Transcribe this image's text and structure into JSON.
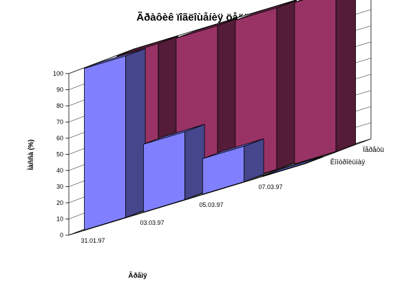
{
  "chart_data": {
    "type": "bar",
    "subtype": "3d-column",
    "title": "Ãðàôèê ïîãëîùåíèÿ öåëëþëîçû",
    "xlabel": "Âðåìÿ",
    "ylabel": "Ìàññà (%)",
    "categories": [
      "31.01.97",
      "03.03.97",
      "05.03.97",
      "07.03.97"
    ],
    "series": [
      {
        "name": "Êîíòðîëüíàÿ",
        "color": "#8080ff",
        "values": [
          100,
          42,
          22,
          0
        ]
      },
      {
        "name": "Ïåðåòü",
        "color": "#993366",
        "values": [
          100,
          100,
          100,
          100
        ]
      }
    ],
    "yticks": [
      0,
      10,
      20,
      30,
      40,
      50,
      60,
      70,
      80,
      90,
      100
    ],
    "ylim": [
      0,
      100
    ],
    "grid": true,
    "legend": "none"
  }
}
